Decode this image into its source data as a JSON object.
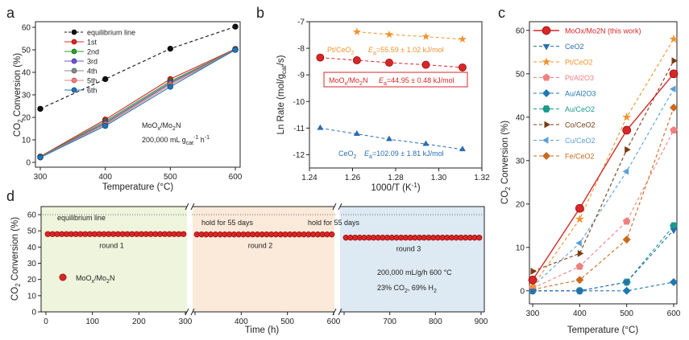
{
  "figure": {
    "panels": [
      "a",
      "b",
      "c",
      "d"
    ]
  },
  "chart_data": [
    {
      "panel": "a",
      "type": "line",
      "xlabel": "Temperature (°C)",
      "ylabel": "CO2 Conversion (%)",
      "xlim": [
        300,
        600
      ],
      "ylim": [
        0,
        60
      ],
      "xticks": [
        300,
        400,
        500,
        600
      ],
      "yticks": [
        0,
        10,
        20,
        30,
        40,
        50,
        60
      ],
      "x": [
        300,
        400,
        500,
        600
      ],
      "series": [
        {
          "name": "equilibrium line",
          "color": "#111111",
          "dashed": true,
          "values": [
            23.8,
            37,
            50.5,
            60.3
          ]
        },
        {
          "name": "1st",
          "color": "#d62728",
          "dashed": false,
          "values": [
            2.6,
            19,
            37,
            50.4
          ]
        },
        {
          "name": "2nd",
          "color": "#2ca02c",
          "dashed": false,
          "values": [
            2.4,
            18.2,
            36,
            50.2
          ]
        },
        {
          "name": "3rd",
          "color": "#6a5acd",
          "dashed": false,
          "values": [
            2.3,
            17.6,
            35.4,
            50.1
          ]
        },
        {
          "name": "4th",
          "color": "#8a8a8a",
          "dashed": false,
          "values": [
            2.3,
            17.2,
            35,
            50.1
          ]
        },
        {
          "name": "5th",
          "color": "#f08080",
          "dashed": false,
          "values": [
            2.2,
            16.8,
            34.4,
            50
          ]
        },
        {
          "name": "6th",
          "color": "#1f77b4",
          "dashed": false,
          "values": [
            2.2,
            16.2,
            33.6,
            50
          ]
        }
      ],
      "annotation": {
        "catalyst": {
          "pre": "MoO",
          "sub": "x",
          "post": "/Mo",
          "sub2": "2",
          "post2": "N"
        },
        "rate": {
          "pre": "200,000 mL g",
          "sub": "cat",
          "sup": "-1",
          "post": " h",
          "sup2": "-1"
        }
      }
    },
    {
      "panel": "b",
      "type": "scatter",
      "xlabel": "1000/T (K-1)",
      "ylabel": "Ln Rate (mol/gcat/s)",
      "xlim": [
        1.24,
        1.32
      ],
      "ylim": [
        -12.5,
        -7
      ],
      "xticks": [
        1.24,
        1.26,
        1.28,
        1.3,
        1.32
      ],
      "yticks": [
        -7,
        -8,
        -9,
        -10,
        -11,
        -12
      ],
      "series": [
        {
          "name": "Pt/CeO2",
          "color": "#f0922e",
          "marker": "star",
          "x": [
            1.262,
            1.277,
            1.294,
            1.311
          ],
          "values": [
            -7.38,
            -7.48,
            -7.56,
            -7.66
          ],
          "label": "Pt/CeO2",
          "ea": "Ea=55.59 ± 1.02 kJ/mol"
        },
        {
          "name": "MoOx/Mo2N",
          "color": "#d62728",
          "marker": "circle",
          "x": [
            1.245,
            1.262,
            1.277,
            1.294,
            1.311
          ],
          "values": [
            -8.35,
            -8.45,
            -8.54,
            -8.62,
            -8.72
          ],
          "label": "MoOx/Mo2N",
          "ea": "Ea=44.95 ± 0.48 kJ/mol"
        },
        {
          "name": "CeO2",
          "color": "#2b6cb0",
          "marker": "triangle",
          "x": [
            1.245,
            1.262,
            1.277,
            1.294,
            1.311
          ],
          "values": [
            -11.0,
            -11.22,
            -11.42,
            -11.6,
            -11.8
          ],
          "label": "CeO2",
          "ea": "Ea=102.09 ± 1.81 kJ/mol"
        }
      ]
    },
    {
      "panel": "c",
      "type": "line",
      "xlabel": "Temperature (°C)",
      "ylabel": "CO2 Conversion (%)",
      "xlim": [
        300,
        600
      ],
      "ylim": [
        -3,
        62
      ],
      "xticks": [
        300,
        400,
        500,
        600
      ],
      "yticks": [
        0,
        10,
        20,
        30,
        40,
        50,
        60
      ],
      "x": [
        300,
        400,
        500,
        600
      ],
      "series": [
        {
          "name": "MoOx/Mo2N (this work)",
          "color": "#d62728",
          "marker": "circle",
          "dashed": false,
          "values": [
            2.5,
            19,
            37,
            50
          ]
        },
        {
          "name": "CeO2",
          "color": "#2b6cb0",
          "marker": "triangle-down",
          "dashed": true,
          "values": [
            0,
            0,
            2,
            14
          ]
        },
        {
          "name": "Pt/CeO2",
          "color": "#f0922e",
          "marker": "star",
          "dashed": true,
          "values": [
            1,
            16.5,
            40,
            58
          ]
        },
        {
          "name": "Pt/Al2O3",
          "color": "#f08080",
          "marker": "pentagon",
          "dashed": true,
          "values": [
            0.6,
            5.6,
            16,
            37
          ]
        },
        {
          "name": "Au/Al2O3",
          "color": "#1f77b4",
          "marker": "diamond",
          "dashed": true,
          "values": [
            0,
            0,
            0,
            2
          ]
        },
        {
          "name": "Au/CeO2",
          "color": "#1a9a8a",
          "marker": "hexagon",
          "dashed": true,
          "values": [
            0,
            0,
            2,
            15
          ]
        },
        {
          "name": "Co/CeO2",
          "color": "#7a3b12",
          "marker": "triangle-right",
          "dashed": true,
          "values": [
            4.5,
            8.6,
            32.5,
            53
          ]
        },
        {
          "name": "Cu/CeO2",
          "color": "#5aa0d8",
          "marker": "triangle-left",
          "dashed": true,
          "values": [
            1,
            11,
            27.5,
            46.5
          ]
        },
        {
          "name": "Fe/CeO2",
          "color": "#c96a1e",
          "marker": "diamond",
          "dashed": true,
          "values": [
            0.3,
            2.5,
            11.8,
            42.2
          ]
        }
      ]
    },
    {
      "panel": "d",
      "type": "scatter",
      "xlabel": "Time (h)",
      "ylabel": "CO2 Conversion (%)",
      "ylim": [
        0,
        65
      ],
      "yticks": [
        0,
        10,
        20,
        30,
        40,
        50,
        60
      ],
      "segments": [
        {
          "name": "round 1",
          "x_from": 0,
          "x_to": 300,
          "ticks": [
            0,
            100,
            200,
            300
          ],
          "level": 48,
          "color": "#eef5dc"
        },
        {
          "name": "round 2",
          "x_from": 300,
          "x_to": 600,
          "ticks": [
            300,
            400,
            500,
            600
          ],
          "level": 47.8,
          "color": "#fbeada"
        },
        {
          "name": "round 3",
          "x_from": 600,
          "x_to": 900,
          "ticks": [
            600,
            700,
            800,
            900
          ],
          "level": 45.8,
          "color": "#dde9f3"
        }
      ],
      "equilibrium_level": 60,
      "labels": {
        "equilibrium": "equilibrium line",
        "hold1": "hold for 55 days",
        "hold2": "hold for 55 days",
        "legend": "MoOx/Mo2N",
        "cond1": "200,000 mL/g/h  600 °C",
        "cond2": "23% CO2, 69% H2"
      }
    }
  ]
}
